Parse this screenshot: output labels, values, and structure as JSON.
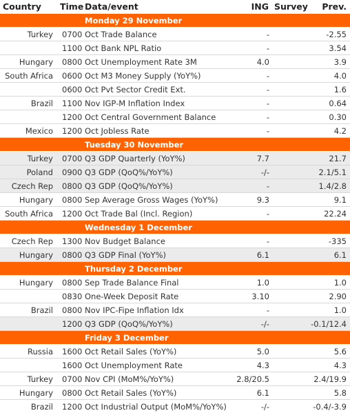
{
  "table": {
    "columns": [
      "Country",
      "Time",
      "Data/event",
      "ING",
      "Survey",
      "Prev."
    ],
    "sections": [
      {
        "title": "Monday 29 November",
        "rows": [
          {
            "cells": [
              "Turkey",
              "0700",
              "Oct Trade Balance",
              "-",
              null,
              "-2.55"
            ],
            "shaded": false
          },
          {
            "cells": [
              null,
              "1100",
              "Oct Bank NPL Ratio",
              "-",
              null,
              "3.54"
            ],
            "shaded": false
          },
          {
            "cells": [
              "Hungary",
              "0800",
              "Oct Unemployment Rate 3M",
              "4.0",
              null,
              "3.9"
            ],
            "shaded": false
          },
          {
            "cells": [
              "South Africa",
              "0600",
              "Oct M3 Money Supply (YoY%)",
              "-",
              null,
              "4.0"
            ],
            "shaded": false
          },
          {
            "cells": [
              null,
              "0600",
              "Oct Pvt Sector Credit Ext.",
              "-",
              null,
              "1.6"
            ],
            "shaded": false
          },
          {
            "cells": [
              "Brazil",
              "1100",
              "Nov IGP-M Inflation Index",
              "-",
              null,
              "0.64"
            ],
            "shaded": false
          },
          {
            "cells": [
              null,
              "1200",
              "Oct Central Government Balance",
              "-",
              null,
              "0.30"
            ],
            "shaded": false
          },
          {
            "cells": [
              "Mexico",
              "1200",
              "Oct Jobless Rate",
              "-",
              null,
              "4.2"
            ],
            "shaded": false
          }
        ]
      },
      {
        "title": "Tuesday 30 November",
        "rows": [
          {
            "cells": [
              "Turkey",
              "0700",
              "Q3 GDP Quarterly (YoY%)",
              "7.7",
              null,
              "21.7"
            ],
            "shaded": true
          },
          {
            "cells": [
              "Poland",
              "0900",
              "Q3 GDP (QoQ%/YoY%)",
              "-/-",
              null,
              "2.1/5.1"
            ],
            "shaded": true
          },
          {
            "cells": [
              "Czech Rep",
              "0800",
              "Q3 GDP (QoQ%/YoY%)",
              "-",
              null,
              "1.4/2.8"
            ],
            "shaded": true
          },
          {
            "cells": [
              "Hungary",
              "0800",
              "Sep Average Gross Wages (YoY%)",
              "9.3",
              null,
              "9.1"
            ],
            "shaded": false
          },
          {
            "cells": [
              "South Africa",
              "1200",
              "Oct Trade Bal (Incl. Region)",
              "-",
              null,
              "22.24"
            ],
            "shaded": false
          }
        ]
      },
      {
        "title": "Wednesday 1 December",
        "rows": [
          {
            "cells": [
              "Czech Rep",
              "1300",
              "Nov Budget Balance",
              "-",
              null,
              "-335"
            ],
            "shaded": false
          },
          {
            "cells": [
              "Hungary",
              "0800",
              "Q3 GDP Final (YoY%)",
              "6.1",
              null,
              "6.1"
            ],
            "shaded": true
          }
        ]
      },
      {
        "title": "Thursday 2 December",
        "rows": [
          {
            "cells": [
              "Hungary",
              "0800",
              "Sep Trade Balance Final",
              "1.0",
              null,
              "1.0"
            ],
            "shaded": false
          },
          {
            "cells": [
              null,
              "0830",
              "One-Week Deposit Rate",
              "3.10",
              null,
              "2.90"
            ],
            "shaded": false
          },
          {
            "cells": [
              "Brazil",
              "0800",
              "Nov IPC-Fipe Inflation Idx",
              "-",
              null,
              "1.0"
            ],
            "shaded": false
          },
          {
            "cells": [
              null,
              "1200",
              "Q3 GDP (QoQ%/YoY%)",
              "-/-",
              null,
              "-0.1/12.4"
            ],
            "shaded": true
          }
        ]
      },
      {
        "title": "Friday 3 December",
        "rows": [
          {
            "cells": [
              "Russia",
              "1600",
              "Oct Retail Sales (YoY%)",
              "5.0",
              null,
              "5.6"
            ],
            "shaded": false
          },
          {
            "cells": [
              null,
              "1600",
              "Oct Unemployment Rate",
              "4.3",
              null,
              "4.3"
            ],
            "shaded": false
          },
          {
            "cells": [
              "Turkey",
              "0700",
              "Nov CPI (MoM%/YoY%)",
              "2.8/20.5",
              null,
              "2.4/19.9"
            ],
            "shaded": false
          },
          {
            "cells": [
              "Hungary",
              "0800",
              "Oct Retail Sales (YoY%)",
              "6.1",
              null,
              "5.8"
            ],
            "shaded": false
          },
          {
            "cells": [
              "Brazil",
              "1200",
              "Oct Industrial Output (MoM%/YoY%)",
              "-/-",
              null,
              "-0.4/-3.9"
            ],
            "shaded": false
          }
        ]
      }
    ]
  }
}
